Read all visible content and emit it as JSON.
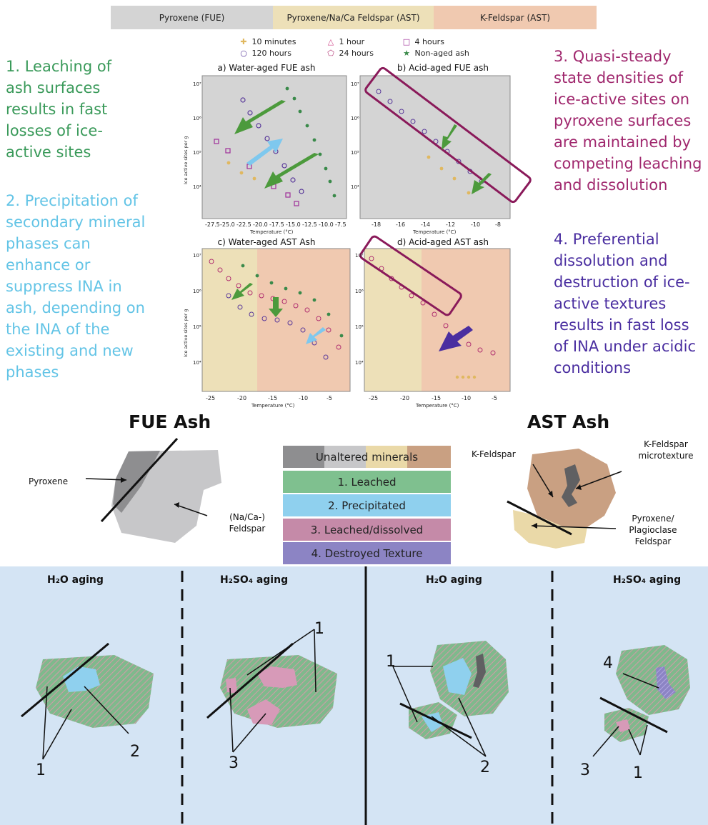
{
  "top_bar": {
    "segment_1": "Pyroxene (FUE)",
    "segment_2": "Pyroxene/Na/Ca Feldspar (AST)",
    "segment_3": "K-Feldspar (AST)"
  },
  "legend": {
    "item_1": "10 minutes",
    "item_2": "1 hour",
    "item_3": "4 hours",
    "item_4": "120 hours",
    "item_5": "24 hours",
    "item_6": "Non-aged ash"
  },
  "notes": {
    "note_1": "1. Leaching of ash surfaces results in fast losses of ice-active sites",
    "note_2": "2. Precipitation of secondary mineral phases can enhance or suppress INA in ash, depending on the INA of the existing and new phases",
    "note_3": "3. Quasi-steady state densities of ice-active sites on pyroxene surfaces are maintained by competing leaching and dissolution",
    "note_4": "4. Preferential dissolution and destruction of ice-active textures results in fast loss of INA under acidic conditions"
  },
  "panels": {
    "a_title": "a) Water-aged FUE ash",
    "b_title": "b) Acid-aged FUE ash",
    "c_title": "c) Water-aged AST Ash",
    "d_title": "d) Acid-aged AST ash",
    "y_label": "Ice active sites per g",
    "x_label": "Temperature (°C)",
    "a_xticks": [
      "-27.5",
      "-25.0",
      "-22.5",
      "-20.0",
      "-17.5",
      "-15.0",
      "-12.5",
      "-10.0",
      "-7.5"
    ],
    "b_xticks": [
      "-18",
      "-16",
      "-14",
      "-12",
      "-10",
      "-8"
    ],
    "cd_xticks": [
      "-25",
      "-20",
      "-15",
      "-10",
      "-5"
    ],
    "yticks": [
      "10⁷",
      "10⁶",
      "10⁵",
      "10⁴"
    ]
  },
  "minerals": {
    "fue_title": "FUE Ash",
    "ast_title": "AST Ash",
    "pyroxene": "Pyroxene",
    "na_ca_feldspar": "(Na/Ca-) Feldspar",
    "k_feldspar": "K-Feldspar",
    "k_feldspar_micro": "K-Feldspar microtexture",
    "pyroxene_plagioclase": "Pyroxene/ Plagioclase Feldspar"
  },
  "key": {
    "unaltered": "Unaltered minerals",
    "leached": "1. Leached",
    "precipitated": "2. Precipitated",
    "leached_dissolved": "3. Leached/dissolved",
    "destroyed": "4. Destroyed Texture"
  },
  "aging": {
    "h2o": "H₂O aging",
    "h2so4": "H₂SO₄ aging"
  },
  "numbers": [
    "1",
    "2",
    "3",
    "4"
  ],
  "colors": {
    "green": "#3a9a5a",
    "cyan": "#63c4e6",
    "purple": "#a0286e",
    "indigo": "#4a2ea0",
    "leached_key": "#7fc08f",
    "precip_key": "#8fd0ee",
    "dissolved_key": "#c58aa8",
    "destroyed_key": "#8c84c4",
    "bottom_bg": "#d4e4f4"
  }
}
